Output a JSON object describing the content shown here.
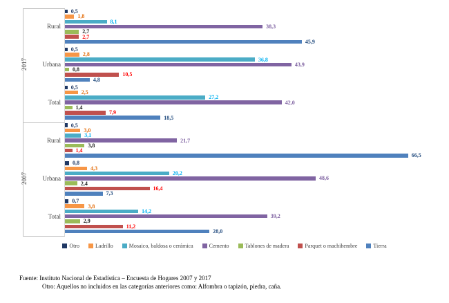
{
  "chart_data": {
    "type": "bar",
    "orientation": "horizontal",
    "title": "",
    "xlabel": "",
    "ylabel": "",
    "xlim": [
      0,
      70
    ],
    "grid": false,
    "legend_position": "bottom",
    "value_format": "comma-decimal-1",
    "series": [
      {
        "name": "Otro",
        "color": "#1F3864",
        "label_color": "#1F3864"
      },
      {
        "name": "Ladrillo",
        "color": "#F79646",
        "label_color": "#E36C0A"
      },
      {
        "name": "Mosaico, baldosa o cerámica",
        "color": "#4BACC6",
        "label_color": "#00B0F0"
      },
      {
        "name": "Cemento",
        "color": "#8064A2",
        "label_color": "#7D60A0"
      },
      {
        "name": "Tablones de madera",
        "color": "#9BBB59",
        "label_color": "#1a1a1a"
      },
      {
        "name": "Parquet o machihembre",
        "color": "#C0504D",
        "label_color": "#FF0000"
      },
      {
        "name": "Tierra",
        "color": "#4F81BD",
        "label_color": "#1F497D"
      }
    ],
    "year_groups": [
      {
        "year": "2017",
        "categories": [
          {
            "label": "Rural",
            "values": [
              0.5,
              1.8,
              8.1,
              38.3,
              2.7,
              2.7,
              45.9
            ]
          },
          {
            "label": "Urbana",
            "values": [
              0.5,
              2.8,
              36.8,
              43.9,
              0.8,
              10.5,
              4.8
            ]
          },
          {
            "label": "Total",
            "values": [
              0.5,
              2.5,
              27.2,
              42.0,
              1.4,
              7.9,
              18.5
            ]
          }
        ]
      },
      {
        "year": "2007",
        "categories": [
          {
            "label": "Rural",
            "values": [
              0.5,
              3.0,
              3.1,
              21.7,
              3.8,
              1.4,
              66.5
            ]
          },
          {
            "label": "Urbana",
            "values": [
              0.8,
              4.3,
              20.2,
              48.6,
              2.4,
              16.4,
              7.3
            ]
          },
          {
            "label": "Total",
            "values": [
              0.7,
              3.8,
              14.2,
              39.2,
              2.9,
              11.2,
              28.0
            ]
          }
        ]
      }
    ]
  },
  "footer": {
    "line1": "Fuente: Instituto Nacional de Estadística – Encuesta de Hogares 2007 y 2017",
    "line2": "Otro: Aquellos no incluidos en las categorías anteriores como: Alfombra o tapizón, piedra, caña."
  }
}
